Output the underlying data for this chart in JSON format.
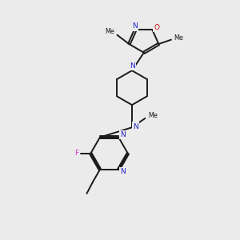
{
  "bg_color": "#ebebeb",
  "bond_color": "#1a1a1a",
  "N_color": "#2020cc",
  "O_color": "#cc1111",
  "F_color": "#cc33cc",
  "figsize": [
    3.0,
    3.0
  ],
  "dpi": 100,
  "xlim": [
    0,
    10
  ],
  "ylim": [
    0,
    10
  ]
}
